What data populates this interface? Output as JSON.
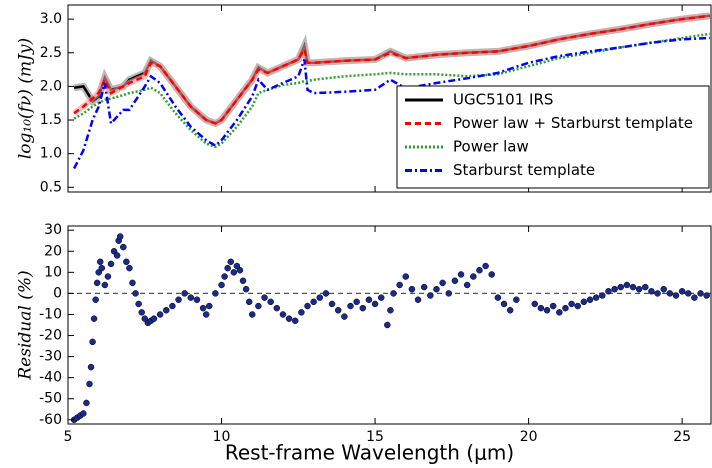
{
  "chart_data": [
    {
      "type": "line",
      "ylabel": "log₁₀(fν) (mJy)",
      "x": [
        5.2,
        5.5,
        5.8,
        6.0,
        6.2,
        6.4,
        6.8,
        7.0,
        7.5,
        7.7,
        8.0,
        8.5,
        9.0,
        9.5,
        9.8,
        10.0,
        10.5,
        11.0,
        11.2,
        11.5,
        12.0,
        12.5,
        12.7,
        12.8,
        13.0,
        14,
        15,
        15.5,
        16,
        17,
        18,
        19,
        20,
        21,
        22,
        23,
        24,
        25,
        25.9
      ],
      "series": [
        {
          "name": "UGC5101 IRS",
          "color": "#000000",
          "linestyle": "solid",
          "values": [
            1.98,
            2.0,
            1.78,
            1.85,
            2.13,
            1.95,
            2.0,
            2.1,
            2.2,
            2.38,
            2.3,
            2.0,
            1.7,
            1.5,
            1.45,
            1.5,
            1.8,
            2.1,
            2.28,
            2.2,
            2.3,
            2.4,
            2.6,
            2.35,
            2.35,
            2.38,
            2.4,
            2.52,
            2.42,
            2.47,
            2.5,
            2.52,
            2.6,
            2.7,
            2.78,
            2.85,
            2.93,
            3.0,
            3.05
          ]
        },
        {
          "name": "Power law + Starburst template",
          "color": "#ff0000",
          "linestyle": "dashed",
          "values": [
            1.6,
            1.7,
            1.82,
            1.9,
            2.1,
            1.9,
            2.0,
            2.05,
            2.15,
            2.35,
            2.3,
            2.0,
            1.7,
            1.5,
            1.45,
            1.5,
            1.8,
            2.1,
            2.25,
            2.2,
            2.3,
            2.4,
            2.55,
            2.35,
            2.35,
            2.38,
            2.4,
            2.5,
            2.42,
            2.47,
            2.5,
            2.52,
            2.6,
            2.7,
            2.78,
            2.85,
            2.93,
            3.0,
            3.05
          ]
        },
        {
          "name": "Power law",
          "color": "#2ca02c",
          "linestyle": "dotted",
          "values": [
            1.52,
            1.6,
            1.7,
            1.75,
            1.8,
            1.82,
            1.87,
            1.9,
            1.95,
            1.98,
            1.9,
            1.6,
            1.35,
            1.15,
            1.1,
            1.15,
            1.4,
            1.7,
            1.9,
            1.95,
            2.02,
            2.05,
            2.08,
            2.08,
            2.1,
            2.15,
            2.18,
            2.2,
            2.18,
            2.18,
            2.15,
            2.18,
            2.3,
            2.42,
            2.5,
            2.58,
            2.65,
            2.72,
            2.78
          ]
        },
        {
          "name": "Starburst template",
          "color": "#0000ff",
          "linestyle": "dashdot",
          "values": [
            0.78,
            1.05,
            1.5,
            1.7,
            2.05,
            1.45,
            1.65,
            1.65,
            2.0,
            2.15,
            2.05,
            1.7,
            1.4,
            1.2,
            1.12,
            1.2,
            1.5,
            1.85,
            2.1,
            1.95,
            2.05,
            2.15,
            2.4,
            1.95,
            1.9,
            1.92,
            1.95,
            2.1,
            1.97,
            2.05,
            2.12,
            2.2,
            2.35,
            2.45,
            2.52,
            2.58,
            2.65,
            2.7,
            2.72
          ]
        }
      ],
      "xlim": [
        5,
        25.94
      ],
      "ylim": [
        0.43,
        3.21
      ],
      "xticks": [
        5,
        10,
        15,
        20,
        25
      ],
      "yticks": [
        {
          "value": 0.5,
          "label": "0.5"
        },
        {
          "value": 1.0,
          "label": "1.0"
        },
        {
          "value": 1.5,
          "label": "1.5"
        },
        {
          "value": 2.0,
          "label": "2.0"
        },
        {
          "value": 2.5,
          "label": "2.5"
        },
        {
          "value": 3.0,
          "label": "3.0"
        }
      ],
      "legend": "lower right"
    },
    {
      "type": "scatter",
      "xlabel": "Rest-frame Wavelength (μm)",
      "ylabel": "Residual (%)",
      "color": "#1a2a8c",
      "x": [
        5.2,
        5.3,
        5.4,
        5.5,
        5.6,
        5.7,
        5.75,
        5.8,
        5.85,
        5.9,
        5.95,
        6.0,
        6.05,
        6.1,
        6.2,
        6.3,
        6.4,
        6.5,
        6.6,
        6.65,
        6.7,
        6.8,
        6.9,
        7.0,
        7.1,
        7.2,
        7.3,
        7.4,
        7.5,
        7.6,
        7.7,
        7.8,
        8.0,
        8.2,
        8.4,
        8.6,
        8.8,
        9.0,
        9.2,
        9.4,
        9.5,
        9.6,
        9.8,
        10.0,
        10.1,
        10.2,
        10.3,
        10.4,
        10.5,
        10.6,
        10.7,
        10.8,
        10.9,
        11.0,
        11.2,
        11.4,
        11.6,
        11.8,
        12.0,
        12.2,
        12.4,
        12.6,
        12.8,
        13.0,
        13.2,
        13.4,
        13.6,
        13.8,
        14.0,
        14.2,
        14.4,
        14.6,
        14.8,
        15.0,
        15.2,
        15.4,
        15.5,
        15.6,
        15.8,
        16.0,
        16.2,
        16.4,
        16.6,
        16.8,
        17.0,
        17.2,
        17.4,
        17.6,
        17.8,
        18.0,
        18.2,
        18.4,
        18.6,
        18.8,
        19.0,
        19.2,
        19.4,
        19.6,
        20.2,
        20.4,
        20.6,
        20.8,
        21.0,
        21.2,
        21.4,
        21.6,
        21.8,
        22.0,
        22.2,
        22.4,
        22.6,
        22.8,
        23.0,
        23.2,
        23.4,
        23.6,
        23.8,
        24.0,
        24.2,
        24.4,
        24.6,
        24.8,
        25.0,
        25.2,
        25.4,
        25.6,
        25.8
      ],
      "values": [
        -60,
        -59,
        -58,
        -57,
        -52,
        -43,
        -35,
        -23,
        -12,
        -3,
        5,
        10,
        15,
        12,
        4,
        8,
        14,
        20,
        18,
        25,
        27,
        22,
        15,
        12,
        5,
        0,
        -5,
        -9,
        -12,
        -14,
        -13,
        -12,
        -10,
        -8,
        -6,
        -3,
        0,
        -2,
        -3,
        -7,
        -10,
        -6,
        0,
        4,
        8,
        12,
        15,
        10,
        13,
        11,
        6,
        2,
        -4,
        -10,
        -6,
        -2,
        -4,
        -7,
        -10,
        -12,
        -13,
        -9,
        -6,
        -4,
        -2,
        0,
        -5,
        -8,
        -11,
        -6,
        -4,
        -7,
        -3,
        -5,
        -2,
        -15,
        -8,
        0,
        4,
        8,
        2,
        -3,
        3,
        -1,
        2,
        5,
        0,
        6,
        9,
        4,
        8,
        11,
        13,
        9,
        -2,
        -5,
        -8,
        -3,
        -5,
        -7,
        -8,
        -6,
        -9,
        -7,
        -5,
        -6,
        -4,
        -3,
        -2,
        -1,
        1,
        2,
        3,
        4,
        3,
        2,
        3,
        1,
        0,
        2,
        0,
        -1,
        1,
        0,
        -2,
        0,
        -1
      ],
      "hline": 0,
      "xlim": [
        5,
        25.94
      ],
      "ylim": [
        -62,
        32
      ],
      "xticks": [
        5,
        10,
        15,
        20,
        25
      ],
      "yticks": [
        30,
        20,
        10,
        0,
        -10,
        -20,
        -30,
        -40,
        -50,
        -60
      ]
    }
  ]
}
